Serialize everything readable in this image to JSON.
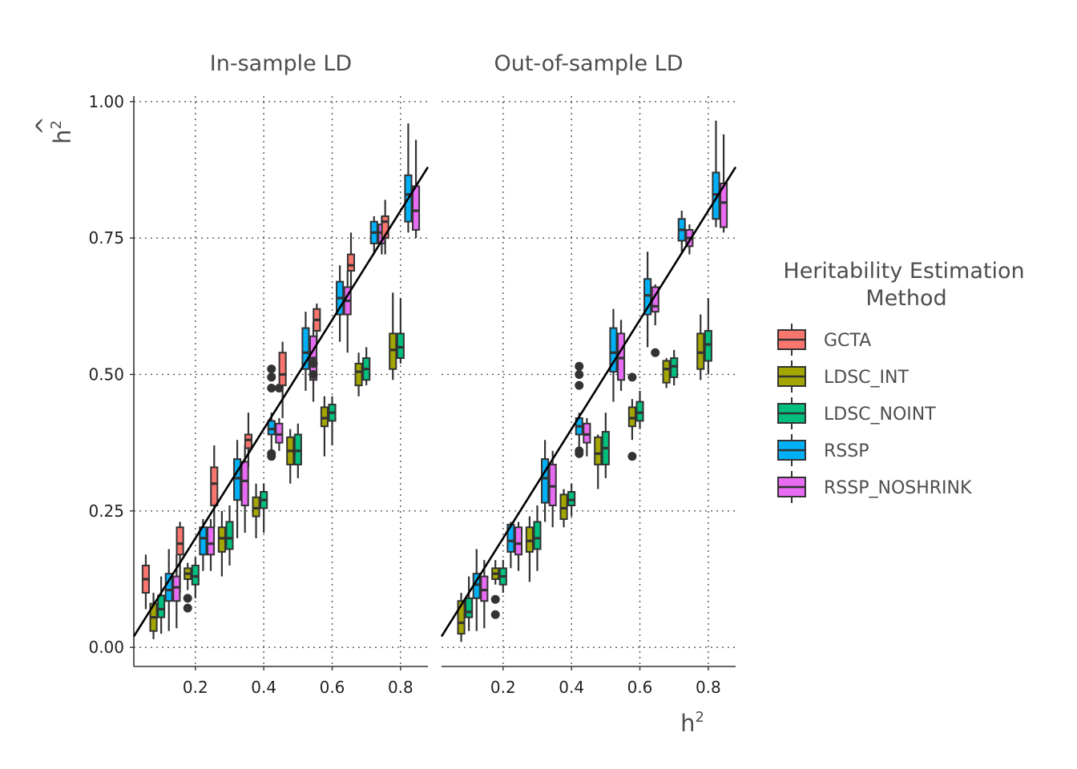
{
  "chart_data": {
    "type": "boxplot",
    "facets": [
      "In-sample LD",
      "Out-of-sample LD"
    ],
    "xlabel": "h",
    "xlabel_sup": "2",
    "ylabel": "h",
    "ylabel_hat": "^",
    "ylabel_sup": "2",
    "xlim": [
      0.02,
      0.88
    ],
    "ylim": [
      -0.035,
      1.01
    ],
    "x_ticks": [
      0.2,
      0.4,
      0.6,
      0.8
    ],
    "x_tick_labels": [
      "0.2",
      "0.4",
      "0.6",
      "0.8"
    ],
    "y_ticks": [
      0.0,
      0.25,
      0.5,
      0.75,
      1.0
    ],
    "y_tick_labels": [
      "0.00",
      "0.25",
      "0.50",
      "0.75",
      "1.00"
    ],
    "grid": "dotted",
    "reference_line": {
      "slope": 1,
      "intercept": 0
    },
    "legend": {
      "title_lines": [
        "Heritability Estimation",
        "Method"
      ],
      "position": "right"
    },
    "series": [
      {
        "name": "GCTA",
        "color": "#F8766D"
      },
      {
        "name": "LDSC_INT",
        "color": "#A3A500"
      },
      {
        "name": "LDSC_NOINT",
        "color": "#00BF7D"
      },
      {
        "name": "RSSP",
        "color": "#00B0F6"
      },
      {
        "name": "RSSP_NOSHRINK",
        "color": "#E76BF3"
      }
    ],
    "groups": [
      0.1,
      0.2,
      0.3,
      0.4,
      0.5,
      0.6,
      0.7,
      0.8
    ],
    "boxes": [
      [
        [
          {
            "min": 0.07,
            "q1": 0.1,
            "median": 0.125,
            "q3": 0.15,
            "max": 0.17
          },
          {
            "min": 0.1,
            "q1": 0.17,
            "median": 0.19,
            "q3": 0.22,
            "max": 0.23
          },
          {
            "min": 0.22,
            "q1": 0.26,
            "median": 0.3,
            "q3": 0.33,
            "max": 0.37
          },
          {
            "min": 0.33,
            "q1": 0.365,
            "median": 0.38,
            "q3": 0.39,
            "max": 0.43
          },
          {
            "min": 0.42,
            "q1": 0.48,
            "median": 0.5,
            "q3": 0.54,
            "max": 0.56
          },
          {
            "min": 0.56,
            "q1": 0.58,
            "median": 0.6,
            "q3": 0.62,
            "max": 0.63
          },
          {
            "min": 0.66,
            "q1": 0.69,
            "median": 0.7,
            "q3": 0.72,
            "max": 0.76
          },
          {
            "min": 0.72,
            "q1": 0.75,
            "median": 0.78,
            "q3": 0.79,
            "max": 0.82
          }
        ],
        [
          {
            "min": 0.015,
            "q1": 0.03,
            "median": 0.055,
            "q3": 0.08,
            "max": 0.1
          },
          {
            "min": 0.105,
            "q1": 0.125,
            "median": 0.135,
            "q3": 0.145,
            "max": 0.155,
            "outliers": [
              0.072,
              0.09
            ]
          },
          {
            "min": 0.13,
            "q1": 0.175,
            "median": 0.2,
            "q3": 0.22,
            "max": 0.25
          },
          {
            "min": 0.2,
            "q1": 0.24,
            "median": 0.255,
            "q3": 0.275,
            "max": 0.3
          },
          {
            "min": 0.3,
            "q1": 0.335,
            "median": 0.36,
            "q3": 0.385,
            "max": 0.4
          },
          {
            "min": 0.35,
            "q1": 0.405,
            "median": 0.42,
            "q3": 0.44,
            "max": 0.46
          },
          {
            "min": 0.46,
            "q1": 0.48,
            "median": 0.505,
            "q3": 0.52,
            "max": 0.54
          },
          {
            "min": 0.49,
            "q1": 0.51,
            "median": 0.545,
            "q3": 0.575,
            "max": 0.65
          }
        ],
        [
          {
            "min": 0.025,
            "q1": 0.055,
            "median": 0.07,
            "q3": 0.095,
            "max": 0.13
          },
          {
            "min": 0.09,
            "q1": 0.115,
            "median": 0.13,
            "q3": 0.15,
            "max": 0.165
          },
          {
            "min": 0.15,
            "q1": 0.18,
            "median": 0.2,
            "q3": 0.23,
            "max": 0.26
          },
          {
            "min": 0.21,
            "q1": 0.255,
            "median": 0.27,
            "q3": 0.285,
            "max": 0.3
          },
          {
            "min": 0.31,
            "q1": 0.335,
            "median": 0.36,
            "q3": 0.39,
            "max": 0.41
          },
          {
            "min": 0.37,
            "q1": 0.415,
            "median": 0.43,
            "q3": 0.445,
            "max": 0.46
          },
          {
            "min": 0.48,
            "q1": 0.49,
            "median": 0.51,
            "q3": 0.53,
            "max": 0.55
          },
          {
            "min": 0.52,
            "q1": 0.53,
            "median": 0.55,
            "q3": 0.575,
            "max": 0.64
          }
        ],
        [
          {
            "min": 0.03,
            "q1": 0.085,
            "median": 0.105,
            "q3": 0.135,
            "max": 0.18
          },
          {
            "min": 0.14,
            "q1": 0.17,
            "median": 0.2,
            "q3": 0.22,
            "max": 0.235
          },
          {
            "min": 0.2,
            "q1": 0.27,
            "median": 0.31,
            "q3": 0.345,
            "max": 0.38
          },
          {
            "min": 0.35,
            "q1": 0.39,
            "median": 0.4,
            "q3": 0.415,
            "max": 0.43,
            "outliers": [
              0.35,
              0.355,
              0.475,
              0.495,
              0.51
            ]
          },
          {
            "min": 0.47,
            "q1": 0.51,
            "median": 0.54,
            "q3": 0.585,
            "max": 0.615
          },
          {
            "min": 0.56,
            "q1": 0.61,
            "median": 0.64,
            "q3": 0.67,
            "max": 0.7
          },
          {
            "min": 0.72,
            "q1": 0.74,
            "median": 0.76,
            "q3": 0.78,
            "max": 0.79
          },
          {
            "min": 0.76,
            "q1": 0.78,
            "median": 0.83,
            "q3": 0.865,
            "max": 0.96
          }
        ],
        [
          {
            "min": 0.035,
            "q1": 0.085,
            "median": 0.11,
            "q3": 0.13,
            "max": 0.17
          },
          {
            "min": 0.14,
            "q1": 0.17,
            "median": 0.19,
            "q3": 0.22,
            "max": 0.235
          },
          {
            "min": 0.21,
            "q1": 0.26,
            "median": 0.305,
            "q3": 0.34,
            "max": 0.37
          },
          {
            "min": 0.36,
            "q1": 0.375,
            "median": 0.39,
            "q3": 0.41,
            "max": 0.42,
            "outliers": [
              0.475
            ]
          },
          {
            "min": 0.45,
            "q1": 0.49,
            "median": 0.53,
            "q3": 0.57,
            "max": 0.595,
            "outliers": [
              0.5,
              0.52
            ]
          },
          {
            "min": 0.54,
            "q1": 0.61,
            "median": 0.635,
            "q3": 0.66,
            "max": 0.69
          },
          {
            "min": 0.72,
            "q1": 0.74,
            "median": 0.76,
            "q3": 0.775,
            "max": 0.79
          },
          {
            "min": 0.75,
            "q1": 0.765,
            "median": 0.8,
            "q3": 0.845,
            "max": 0.93
          }
        ]
      ],
      [
        [
          null,
          null,
          null,
          null,
          null,
          null,
          null,
          null
        ],
        [
          {
            "min": 0.01,
            "q1": 0.025,
            "median": 0.045,
            "q3": 0.085,
            "max": 0.1
          },
          {
            "min": 0.115,
            "q1": 0.125,
            "median": 0.135,
            "q3": 0.145,
            "max": 0.16,
            "outliers": [
              0.06,
              0.088
            ]
          },
          {
            "min": 0.12,
            "q1": 0.175,
            "median": 0.195,
            "q3": 0.22,
            "max": 0.24
          },
          {
            "min": 0.22,
            "q1": 0.235,
            "median": 0.255,
            "q3": 0.28,
            "max": 0.29
          },
          {
            "min": 0.29,
            "q1": 0.335,
            "median": 0.355,
            "q3": 0.385,
            "max": 0.39
          },
          {
            "min": 0.38,
            "q1": 0.405,
            "median": 0.42,
            "q3": 0.44,
            "max": 0.455,
            "outliers": [
              0.35,
              0.495
            ]
          },
          {
            "min": 0.475,
            "q1": 0.485,
            "median": 0.51,
            "q3": 0.525,
            "max": 0.53
          },
          {
            "min": 0.49,
            "q1": 0.51,
            "median": 0.54,
            "q3": 0.575,
            "max": 0.61
          }
        ],
        [
          {
            "min": 0.03,
            "q1": 0.055,
            "median": 0.065,
            "q3": 0.09,
            "max": 0.13
          },
          {
            "min": 0.1,
            "q1": 0.115,
            "median": 0.13,
            "q3": 0.145,
            "max": 0.16
          },
          {
            "min": 0.14,
            "q1": 0.18,
            "median": 0.2,
            "q3": 0.23,
            "max": 0.26
          },
          {
            "min": 0.24,
            "q1": 0.26,
            "median": 0.27,
            "q3": 0.285,
            "max": 0.3
          },
          {
            "min": 0.31,
            "q1": 0.335,
            "median": 0.365,
            "q3": 0.395,
            "max": 0.43
          },
          {
            "min": 0.4,
            "q1": 0.415,
            "median": 0.43,
            "q3": 0.45,
            "max": 0.47
          },
          {
            "min": 0.48,
            "q1": 0.495,
            "median": 0.515,
            "q3": 0.53,
            "max": 0.545
          },
          {
            "min": 0.5,
            "q1": 0.525,
            "median": 0.555,
            "q3": 0.58,
            "max": 0.64
          }
        ],
        [
          {
            "min": 0.03,
            "q1": 0.09,
            "median": 0.115,
            "q3": 0.135,
            "max": 0.18
          },
          {
            "min": 0.145,
            "q1": 0.175,
            "median": 0.195,
            "q3": 0.225,
            "max": 0.23
          },
          {
            "min": 0.23,
            "q1": 0.265,
            "median": 0.31,
            "q3": 0.345,
            "max": 0.38
          },
          {
            "min": 0.36,
            "q1": 0.39,
            "median": 0.405,
            "q3": 0.42,
            "max": 0.43,
            "outliers": [
              0.355,
              0.36,
              0.48,
              0.5,
              0.515
            ]
          },
          {
            "min": 0.45,
            "q1": 0.505,
            "median": 0.54,
            "q3": 0.585,
            "max": 0.62
          },
          {
            "min": 0.55,
            "q1": 0.61,
            "median": 0.645,
            "q3": 0.675,
            "max": 0.725
          },
          {
            "min": 0.72,
            "q1": 0.745,
            "median": 0.765,
            "q3": 0.785,
            "max": 0.8
          },
          {
            "min": 0.77,
            "q1": 0.785,
            "median": 0.83,
            "q3": 0.87,
            "max": 0.965
          }
        ],
        [
          {
            "min": 0.035,
            "q1": 0.085,
            "median": 0.105,
            "q3": 0.13,
            "max": 0.16
          },
          {
            "min": 0.14,
            "q1": 0.17,
            "median": 0.19,
            "q3": 0.22,
            "max": 0.23
          },
          {
            "min": 0.22,
            "q1": 0.26,
            "median": 0.295,
            "q3": 0.335,
            "max": 0.36
          },
          {
            "min": 0.35,
            "q1": 0.375,
            "median": 0.39,
            "q3": 0.41,
            "max": 0.42
          },
          {
            "min": 0.47,
            "q1": 0.49,
            "median": 0.53,
            "q3": 0.575,
            "max": 0.6
          },
          {
            "min": 0.59,
            "q1": 0.615,
            "median": 0.625,
            "q3": 0.66,
            "max": 0.665,
            "outliers": [
              0.54
            ]
          },
          {
            "min": 0.72,
            "q1": 0.735,
            "median": 0.75,
            "q3": 0.765,
            "max": 0.775
          },
          {
            "min": 0.76,
            "q1": 0.77,
            "median": 0.815,
            "q3": 0.85,
            "max": 0.94
          }
        ]
      ]
    ]
  }
}
